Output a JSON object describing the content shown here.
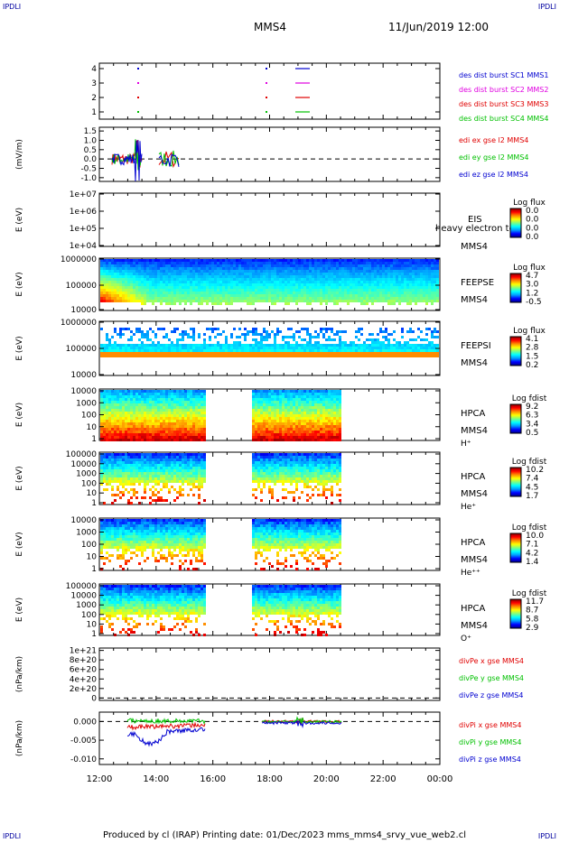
{
  "corners": {
    "tl": "IPDLI",
    "tr": "IPDLI",
    "bl": "IPDLI",
    "br": "IPDLI"
  },
  "header": {
    "spacecraft": "MMS4",
    "datetime": "11/Jun/2019 12:00"
  },
  "footer": {
    "text": "Produced by cl (IRAP)    Printing date: 01/Dec/2023    mms_mms4_srvy_vue_web2.cl"
  },
  "x_ticks": [
    "12:00",
    "14:00",
    "16:00",
    "18:00",
    "20:00",
    "22:00",
    "00:00"
  ],
  "colors": {
    "red": "#e00000",
    "green": "#00c000",
    "blue": "#0000d0",
    "magenta": "#e000e0",
    "dark_blue": "#0000a0"
  },
  "chart_data": [
    {
      "type": "line",
      "title": "des dist burst",
      "y_ticks": [
        "4",
        "3",
        "2",
        "1"
      ],
      "ylim": [
        0.5,
        4.5
      ],
      "series": [
        {
          "name": "des dist burst SC1 MMS1",
          "y": 4,
          "color": "#0000d0"
        },
        {
          "name": "des dist burst SC2 MMS2",
          "y": 3,
          "color": "#e000e0"
        },
        {
          "name": "des dist burst SC3 MMS3",
          "y": 2,
          "color": "#e00000"
        },
        {
          "name": "des dist burst SC4 MMS4",
          "y": 1,
          "color": "#00c000"
        }
      ]
    },
    {
      "type": "line",
      "ylabel": "(mV/m)",
      "y_ticks": [
        "1.5",
        "1.0",
        "0.5",
        "0.0",
        "-0.5",
        "-1.0"
      ],
      "ylim": [
        -1.2,
        1.7
      ],
      "series": [
        {
          "name": "edi ex gse l2 MMS4",
          "color": "#e00000"
        },
        {
          "name": "edi ey gse l2 MMS4",
          "color": "#00c000"
        },
        {
          "name": "edi ez gse l2 MMS4",
          "color": "#0000d0"
        }
      ]
    },
    {
      "type": "heatmap",
      "ylabel": "E (eV)",
      "y_ticks": [
        "1e+07",
        "1e+06",
        "1e+05",
        "1e+04"
      ],
      "labels": [
        "EIS",
        "MMS4"
      ],
      "overlay_text": "heavy electron tof",
      "colorbar": {
        "title": "Log flux",
        "ticks": [
          "0.0",
          "0.0",
          "0.0",
          "0.0"
        ]
      }
    },
    {
      "type": "heatmap",
      "ylabel": "E (eV)",
      "y_ticks": [
        "1000000",
        "100000",
        "10000"
      ],
      "labels": [
        "FEEPSE",
        "MMS4"
      ],
      "colorbar": {
        "title": "Log flux",
        "ticks": [
          "4.7",
          "3.0",
          "1.2",
          "-0.5"
        ]
      }
    },
    {
      "type": "heatmap",
      "ylabel": "E (eV)",
      "y_ticks": [
        "1000000",
        "100000",
        "10000"
      ],
      "labels": [
        "FEEPSI",
        "MMS4"
      ],
      "colorbar": {
        "title": "Log flux",
        "ticks": [
          "4.1",
          "2.8",
          "1.5",
          "0.2"
        ]
      }
    },
    {
      "type": "heatmap",
      "ylabel": "E (eV)",
      "y_ticks": [
        "10000",
        "1000",
        "100",
        "10",
        "1"
      ],
      "labels": [
        "HPCA",
        "MMS4",
        "H⁺"
      ],
      "colorbar": {
        "title": "Log fdist",
        "ticks": [
          "9.2",
          "6.3",
          "3.4",
          "0.5"
        ]
      }
    },
    {
      "type": "heatmap",
      "ylabel": "E (eV)",
      "y_ticks": [
        "100000",
        "10000",
        "1000",
        "100",
        "10",
        "1"
      ],
      "labels": [
        "HPCA",
        "MMS4",
        "He⁺"
      ],
      "colorbar": {
        "title": "Log fdist",
        "ticks": [
          "10.2",
          "7.4",
          "4.5",
          "1.7"
        ]
      }
    },
    {
      "type": "heatmap",
      "ylabel": "E (eV)",
      "y_ticks": [
        "10000",
        "1000",
        "100",
        "10",
        "1"
      ],
      "labels": [
        "HPCA",
        "MMS4",
        "He⁺⁺"
      ],
      "colorbar": {
        "title": "Log fdist",
        "ticks": [
          "10.0",
          "7.1",
          "4.2",
          "1.4"
        ]
      }
    },
    {
      "type": "heatmap",
      "ylabel": "E (eV)",
      "y_ticks": [
        "100000",
        "10000",
        "1000",
        "100",
        "10",
        "1"
      ],
      "labels": [
        "HPCA",
        "MMS4",
        "O⁺"
      ],
      "colorbar": {
        "title": "Log fdist",
        "ticks": [
          "11.7",
          "8.7",
          "5.8",
          "2.9"
        ]
      }
    },
    {
      "type": "line",
      "ylabel": "(nPa/km)",
      "y_ticks": [
        "1e+21",
        "8e+20",
        "6e+20",
        "4e+20",
        "2e+20",
        "0"
      ],
      "ylim": [
        -5e+19,
        1.05e+21
      ],
      "series": [
        {
          "name": "divPe x gse MMS4",
          "color": "#e00000"
        },
        {
          "name": "divPe y gse MMS4",
          "color": "#00c000"
        },
        {
          "name": "divPe z gse MMS4",
          "color": "#0000d0"
        }
      ]
    },
    {
      "type": "line",
      "ylabel": "(nPa/km)",
      "y_ticks": [
        "0.000",
        "-0.005",
        "-0.010"
      ],
      "ylim": [
        -0.0115,
        0.0025
      ],
      "series": [
        {
          "name": "divPi x gse MMS4",
          "color": "#e00000"
        },
        {
          "name": "divPi y gse MMS4",
          "color": "#00c000"
        },
        {
          "name": "divPi z gse MMS4",
          "color": "#0000d0"
        }
      ]
    }
  ]
}
